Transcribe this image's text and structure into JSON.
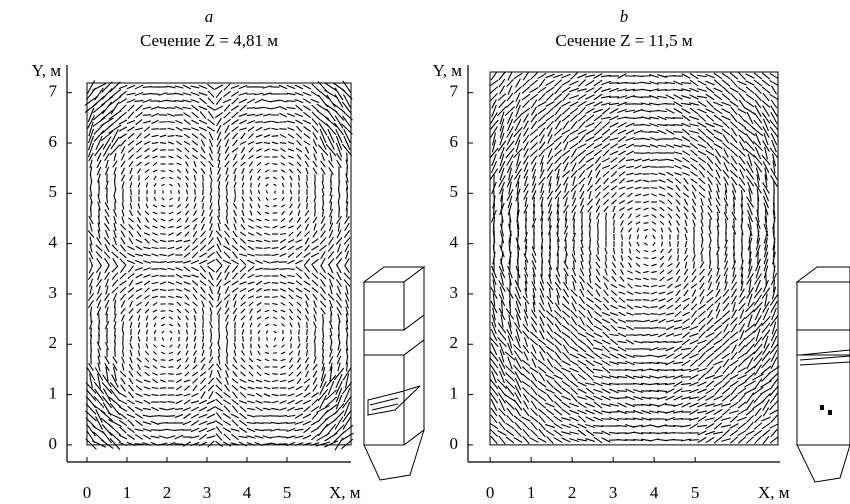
{
  "chart_data": [
    {
      "type": "vector-field",
      "panel": "a",
      "title": "Сечение Z = 4,81 м",
      "y_label": "Y, м",
      "x_label": "X, м",
      "xlim": [
        -0.5,
        6.6
      ],
      "ylim": [
        -0.34,
        7.55
      ],
      "xticks": [
        0,
        1,
        2,
        3,
        4,
        5
      ],
      "yticks": [
        0,
        1,
        2,
        3,
        4,
        5,
        6,
        7
      ]
    },
    {
      "type": "vector-field",
      "panel": "b",
      "title": "Сечение Z = 11,5 м",
      "y_label": "Y, м",
      "x_label": "X, м",
      "xlim": [
        -0.54,
        7.07
      ],
      "ylim": [
        -0.34,
        7.55
      ],
      "xticks": [
        0,
        1,
        2,
        3,
        4,
        5
      ],
      "yticks": [
        0,
        1,
        2,
        3,
        4,
        5,
        6,
        7
      ]
    }
  ]
}
